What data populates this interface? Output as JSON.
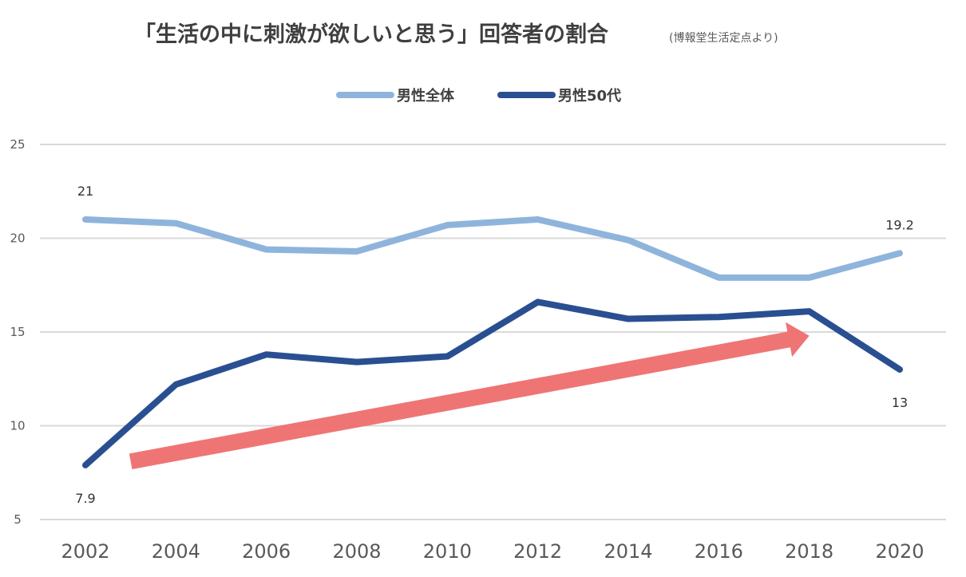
{
  "chart_data": {
    "type": "line",
    "title": "「生活の中に刺激が欲しいと思う」回答者の割合",
    "subtitle": "(博報堂生活定点より)",
    "xlabel": "",
    "ylabel": "",
    "categories": [
      "2002",
      "2004",
      "2006",
      "2008",
      "2010",
      "2012",
      "2014",
      "2016",
      "2018",
      "2020"
    ],
    "ylim": [
      5,
      25
    ],
    "yticks": [
      5,
      10,
      15,
      20,
      25
    ],
    "grid": true,
    "legend_position": "top-center",
    "series": [
      {
        "name": "男性全体",
        "color": "#8FB4DC",
        "values": [
          21.0,
          20.8,
          19.4,
          19.3,
          20.7,
          21.0,
          19.9,
          17.9,
          17.9,
          19.2
        ],
        "labels": [
          {
            "index": 0,
            "text": "21",
            "pos": "above"
          },
          {
            "index": 9,
            "text": "19.2",
            "pos": "above"
          }
        ]
      },
      {
        "name": "男性50代",
        "color": "#2A4F91",
        "values": [
          7.9,
          12.2,
          13.8,
          13.4,
          13.7,
          16.6,
          15.7,
          15.8,
          16.1,
          13.0
        ],
        "labels": [
          {
            "index": 0,
            "text": "7.9",
            "pos": "below"
          },
          {
            "index": 9,
            "text": "13",
            "pos": "below"
          }
        ]
      }
    ],
    "annotations": [
      {
        "type": "arrow",
        "description": "upward trend arrow",
        "color": "#EE6E6E",
        "from": {
          "x": 2003,
          "y": 8.1
        },
        "to": {
          "x": 2018,
          "y": 14.8
        }
      }
    ]
  }
}
